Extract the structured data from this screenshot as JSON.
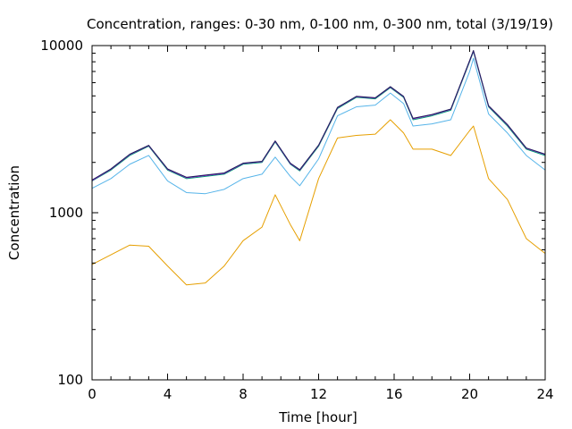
{
  "chart_data": {
    "type": "line",
    "title": "Concentration, ranges: 0-30 nm, 0-100 nm, 0-300 nm, total (3/19/19)",
    "xlabel": "Time [hour]",
    "ylabel": "Concentration",
    "xlim": [
      0,
      24
    ],
    "ylim": [
      100,
      10000
    ],
    "yscale": "log",
    "grid": false,
    "legend": "none",
    "x_ticks": [
      0,
      4,
      8,
      12,
      16,
      20,
      24
    ],
    "y_ticks": [
      100,
      1000,
      10000
    ],
    "x": [
      0,
      1,
      2,
      3,
      4,
      5,
      6,
      7,
      8,
      9,
      9.7,
      10.5,
      11,
      12,
      13,
      14,
      15,
      15.8,
      16.5,
      17,
      18,
      19,
      20,
      20.2,
      21,
      22,
      23,
      24
    ],
    "series": [
      {
        "color": "#e69f00",
        "values": [
          490,
          560,
          640,
          630,
          480,
          370,
          380,
          480,
          680,
          820,
          1280,
          850,
          680,
          1600,
          2800,
          2900,
          2950,
          3600,
          3000,
          2400,
          2400,
          2200,
          3100,
          3300,
          1600,
          1200,
          700,
          570
        ]
      },
      {
        "color": "#56b4e9",
        "values": [
          1400,
          1600,
          1950,
          2200,
          1550,
          1320,
          1300,
          1380,
          1600,
          1700,
          2150,
          1650,
          1450,
          2100,
          3800,
          4300,
          4400,
          5200,
          4500,
          3300,
          3400,
          3600,
          7000,
          8400,
          3900,
          3000,
          2200,
          1800
        ]
      },
      {
        "color": "#009e73",
        "values": [
          1550,
          1800,
          2200,
          2500,
          1800,
          1600,
          1650,
          1700,
          1950,
          2000,
          2650,
          1950,
          1780,
          2500,
          4200,
          4900,
          4800,
          5600,
          4900,
          3600,
          3800,
          4100,
          8000,
          9200,
          4300,
          3300,
          2400,
          2200
        ]
      },
      {
        "color": "#9400d3",
        "values": [
          1560,
          1820,
          2230,
          2520,
          1820,
          1620,
          1670,
          1720,
          1970,
          2020,
          2680,
          1970,
          1800,
          2530,
          4250,
          4950,
          4850,
          5650,
          4950,
          3650,
          3850,
          4150,
          8100,
          9300,
          4350,
          3350,
          2430,
          2230
        ]
      },
      {
        "color": "#1f1f5a",
        "values": [
          1570,
          1830,
          2240,
          2530,
          1830,
          1630,
          1680,
          1730,
          1980,
          2030,
          2690,
          1980,
          1810,
          2540,
          4270,
          4970,
          4870,
          5680,
          4970,
          3670,
          3870,
          4170,
          8150,
          9350,
          4370,
          3370,
          2440,
          2240
        ]
      }
    ]
  }
}
